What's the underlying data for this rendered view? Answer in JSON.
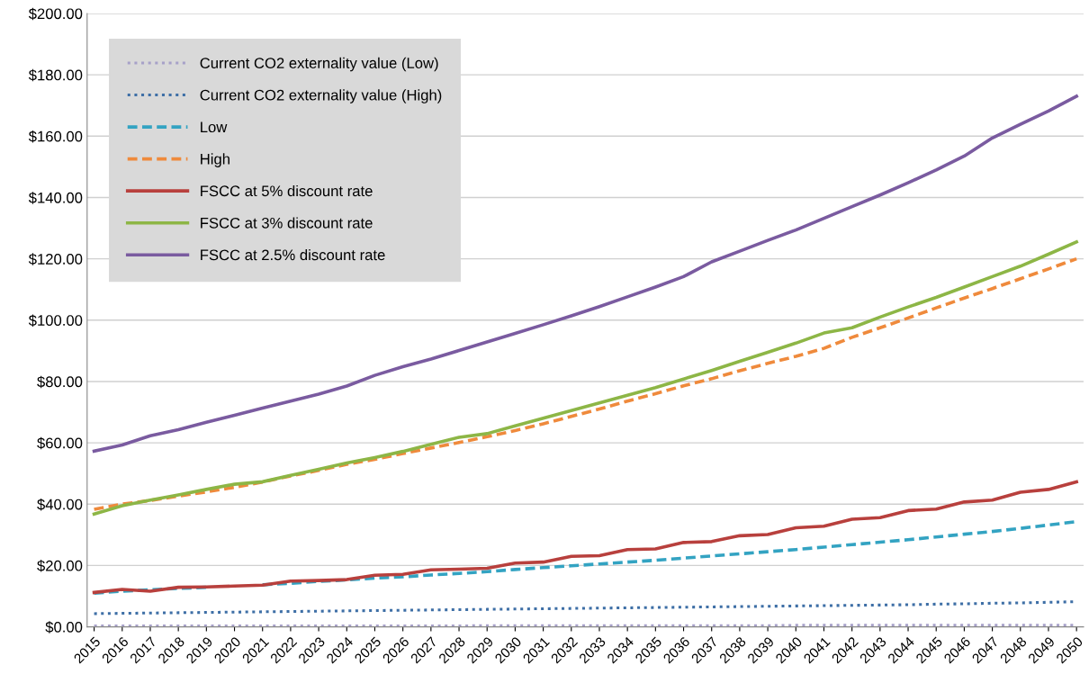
{
  "chart_data": {
    "type": "line",
    "categories": [
      "2015",
      "2016",
      "2017",
      "2018",
      "2019",
      "2020",
      "2021",
      "2022",
      "2023",
      "2024",
      "2025",
      "2026",
      "2027",
      "2028",
      "2029",
      "2030",
      "2031",
      "2032",
      "2033",
      "2034",
      "2035",
      "2036",
      "2037",
      "2038",
      "2039",
      "2040",
      "2041",
      "2042",
      "2043",
      "2044",
      "2045",
      "2046",
      "2047",
      "2048",
      "2049",
      "2050"
    ],
    "ylim": [
      0,
      200
    ],
    "yticks": [
      {
        "value": 0,
        "label": "$0.00"
      },
      {
        "value": 20,
        "label": "$20.00"
      },
      {
        "value": 40,
        "label": "$40.00"
      },
      {
        "value": 60,
        "label": "$60.00"
      },
      {
        "value": 80,
        "label": "$80.00"
      },
      {
        "value": 100,
        "label": "$100.00"
      },
      {
        "value": 120,
        "label": "$120.00"
      },
      {
        "value": 140,
        "label": "$140.00"
      },
      {
        "value": 160,
        "label": "$160.00"
      },
      {
        "value": 180,
        "label": "$180.00"
      },
      {
        "value": 200,
        "label": "$200.00"
      }
    ],
    "grid": "y",
    "legend": "top left",
    "marker": "none",
    "series": [
      {
        "name": "Current CO2 externality value (Low)",
        "color": "#a7a1c9",
        "line_style": "dotted",
        "values": [
          0.3,
          0.3,
          0.3,
          0.3,
          0.3,
          0.3,
          0.3,
          0.3,
          0.3,
          0.3,
          0.3,
          0.3,
          0.3,
          0.3,
          0.4,
          0.4,
          0.4,
          0.4,
          0.4,
          0.4,
          0.4,
          0.4,
          0.4,
          0.4,
          0.4,
          0.5,
          0.5,
          0.5,
          0.5,
          0.5,
          0.5,
          0.5,
          0.5,
          0.5,
          0.5,
          0.5
        ]
      },
      {
        "name": "Current CO2 externality value (High)",
        "color": "#3e6fa6",
        "line_style": "dotted",
        "values": [
          4.3,
          4.4,
          4.5,
          4.6,
          4.7,
          4.8,
          4.9,
          5.0,
          5.1,
          5.2,
          5.3,
          5.4,
          5.5,
          5.6,
          5.7,
          5.8,
          5.9,
          6.0,
          6.1,
          6.2,
          6.3,
          6.4,
          6.5,
          6.6,
          6.7,
          6.8,
          6.9,
          7.0,
          7.1,
          7.2,
          7.4,
          7.5,
          7.7,
          7.8,
          8.0,
          8.2
        ]
      },
      {
        "name": "Low",
        "color": "#33a3c2",
        "line_style": "dashed",
        "values": [
          11.0,
          11.6,
          12.1,
          12.5,
          12.9,
          null,
          13.7,
          14.2,
          14.8,
          15.3,
          15.9,
          16.3,
          16.9,
          17.4,
          18.0,
          18.7,
          19.3,
          19.9,
          20.5,
          21.1,
          21.7,
          22.4,
          23.1,
          23.8,
          24.5,
          25.2,
          26.0,
          26.8,
          27.6,
          28.4,
          29.3,
          30.2,
          31.1,
          32.1,
          33.2,
          34.3
        ]
      },
      {
        "name": "High",
        "color": "#ef8a3c",
        "line_style": "dashed",
        "values": [
          38.3,
          40.0,
          41.2,
          42.6,
          44.0,
          45.5,
          47.2,
          49.2,
          51.0,
          53.0,
          54.6,
          56.5,
          58.3,
          60.1,
          62.0,
          64.0,
          66.2,
          68.6,
          71.0,
          73.6,
          76.0,
          78.6,
          80.9,
          83.5,
          85.9,
          88.2,
          90.8,
          94.4,
          97.5,
          100.7,
          104.0,
          107.2,
          110.3,
          113.5,
          116.7,
          120.0
        ]
      },
      {
        "name": "FSCC at 5% discount rate",
        "color": "#b8403d",
        "line_style": "solid",
        "values": [
          11.2,
          12.2,
          11.6,
          12.9,
          13.0,
          13.3,
          13.6,
          14.9,
          15.1,
          15.4,
          16.8,
          17.1,
          18.6,
          18.8,
          19.1,
          20.8,
          21.1,
          23.0,
          23.2,
          25.2,
          25.4,
          27.5,
          27.8,
          29.7,
          30.1,
          32.3,
          32.8,
          35.1,
          35.6,
          37.9,
          38.4,
          40.7,
          41.3,
          43.9,
          44.8,
          47.3
        ]
      },
      {
        "name": "FSCC at 3% discount rate",
        "color": "#8db646",
        "line_style": "solid",
        "values": [
          36.8,
          39.5,
          41.3,
          43.0,
          44.8,
          46.5,
          47.3,
          49.4,
          51.4,
          53.4,
          55.2,
          57.2,
          59.5,
          61.8,
          63.0,
          65.5,
          68.0,
          70.5,
          73.0,
          75.5,
          78.0,
          80.8,
          83.6,
          86.6,
          89.5,
          92.5,
          95.8,
          97.5,
          101.0,
          104.3,
          107.4,
          110.8,
          114.2,
          117.6,
          121.5,
          125.5
        ]
      },
      {
        "name": "FSCC at 2.5% discount rate",
        "color": "#7a5ba0",
        "line_style": "solid",
        "values": [
          57.3,
          59.3,
          62.3,
          64.3,
          66.7,
          69.0,
          71.3,
          73.6,
          75.9,
          78.5,
          82.0,
          84.8,
          87.3,
          90.1,
          92.9,
          95.7,
          98.5,
          101.4,
          104.4,
          107.6,
          110.8,
          114.2,
          119.0,
          122.5,
          126.0,
          129.4,
          133.2,
          137.0,
          140.8,
          144.8,
          149.0,
          153.5,
          159.4,
          163.9,
          168.2,
          173.0
        ]
      }
    ]
  }
}
